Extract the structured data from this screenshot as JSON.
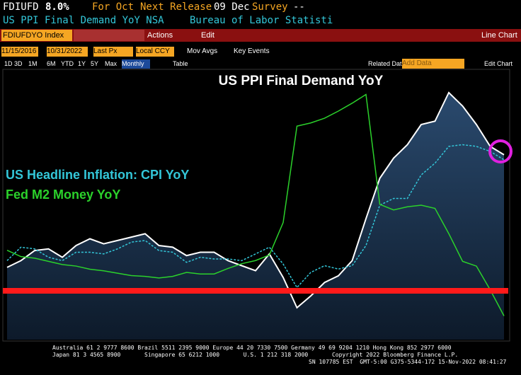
{
  "header": {
    "ticker": "FDIUFD",
    "last": "8.0%",
    "period": "For Oct",
    "next_label": "Next Release",
    "next_date": "09 Dec",
    "survey_label": "Survey",
    "survey_value": "--",
    "description": "US PPI Final Demand YoY NSA",
    "source": "Bureau of Labor Statisti"
  },
  "toolbar": {
    "security": "FDIUFDYO Index",
    "actions": "Actions",
    "edit": "Edit",
    "view": "Line Chart",
    "start_date": "11/15/2016",
    "end_date": "10/31/2022",
    "price": "Last Px",
    "currency": "Local CCY",
    "mov_avgs": "Mov Avgs",
    "key_events": "Key Events",
    "ranges": [
      "1D",
      "3D",
      "1M",
      "6M",
      "YTD",
      "1Y",
      "5Y",
      "Max"
    ],
    "frequency": "Monthly",
    "table": "Table",
    "related": "Related Dat",
    "add_data": "Add Data",
    "edit_chart": "Edit Chart"
  },
  "chart_data": {
    "type": "line",
    "title": "US PPI Final Demand YoY",
    "annotations": [
      "US Headline Inflation: CPI YoY",
      "Fed M2 Money YoY"
    ],
    "categories": [
      null,
      null,
      null,
      null,
      null,
      null,
      null,
      null,
      null,
      null,
      null,
      null,
      null,
      null,
      null,
      null,
      null,
      null,
      null,
      null,
      null,
      null,
      null,
      null,
      null,
      null,
      null,
      null,
      null,
      null,
      null,
      null,
      null,
      null,
      null,
      null,
      null
    ],
    "ylim": [
      -3,
      13
    ],
    "y2lim": [
      -4,
      30
    ],
    "series": [
      {
        "color": "#ffffff",
        "fill": true,
        "values": [
          1.3,
          1.7,
          2.3,
          2.4,
          1.9,
          2.6,
          3.0,
          2.7,
          2.9,
          3.1,
          3.3,
          2.6,
          2.5,
          2.0,
          2.2,
          2.2,
          1.7,
          1.4,
          1.1,
          2.1,
          0.7,
          -1.1,
          -0.4,
          0.4,
          0.8,
          1.7,
          4.2,
          6.6,
          7.8,
          8.6,
          9.8,
          10.0,
          11.7,
          10.9,
          9.8,
          8.5,
          8.0
        ]
      },
      {
        "color": "#33c6d8",
        "dashed": true,
        "values": [
          1.7,
          2.5,
          2.4,
          1.9,
          1.7,
          2.2,
          2.2,
          2.1,
          2.4,
          2.8,
          2.9,
          2.3,
          2.2,
          1.6,
          1.9,
          1.8,
          1.8,
          1.7,
          2.1,
          2.5,
          1.5,
          0.1,
          1.0,
          1.4,
          1.2,
          1.4,
          2.6,
          5.0,
          5.4,
          5.4,
          6.8,
          7.5,
          8.5,
          8.6,
          8.5,
          8.2,
          7.7
        ]
      },
      {
        "color": "#2bd12b",
        "axis": "y2",
        "values": [
          7.3,
          6.5,
          6.3,
          5.9,
          5.5,
          5.3,
          4.9,
          4.7,
          4.4,
          4.1,
          4.0,
          3.8,
          4.0,
          4.5,
          4.3,
          4.3,
          5.0,
          5.6,
          6.0,
          6.7,
          10.8,
          23.0,
          23.4,
          24.0,
          24.9,
          25.9,
          27.0,
          13.1,
          12.4,
          12.8,
          13.0,
          12.6,
          9.4,
          5.9,
          5.3,
          2.3,
          -1.0
        ]
      }
    ]
  },
  "footer": {
    "line1": "Australia 61 2 9777 8600 Brazil 5511 2395 9000 Europe 44 20 7330 7500 Germany 49 69 9204 1210 Hong Kong 852 2977 6000",
    "line2": "Japan 81 3 4565 8900       Singapore 65 6212 1000       U.S. 1 212 318 2000       Copyright 2022 Bloomberg Finance L.P.",
    "line3": "SN 107785 EST  GMT-5:00 G375-5344-172 15-Nov-2022 08:41:27"
  }
}
